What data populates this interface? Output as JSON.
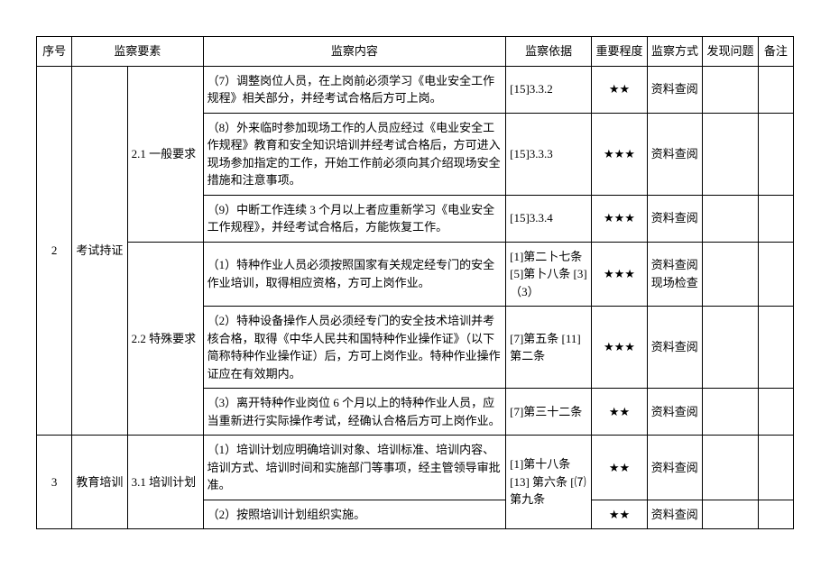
{
  "headers": {
    "seq": "序号",
    "element": "监察要素",
    "content": "监察内容",
    "basis": "监察依据",
    "importance": "重要程度",
    "method": "监察方式",
    "found": "发现问题",
    "remark": "备注"
  },
  "rows": [
    {
      "seq": "2",
      "elem1": "考试持证",
      "elem2": "2.1 一般要求",
      "content": "（7）调整岗位人员，在上岗前必须学习《电业安全工作规程》相关部分，并经考试合格后方可上岗。",
      "basis": "[15]3.3.2",
      "importance": "★★",
      "method": "资料查阅"
    },
    {
      "content": "（8）外来临时参加现场工作的人员应经过《电业安全工作规程》教育和安全知识培训并经考试合格后，方可进入现场参加指定的工作，开始工作前必须向其介绍现场安全措施和注意事项。",
      "basis": "[15]3.3.3",
      "importance": "★★★",
      "method": "资料查阅"
    },
    {
      "content": "（9）中断工作连续 3 个月以上者应重新学习《电业安全工作规程》，并经考试合格后，方能恢复工作。",
      "basis": "[15]3.3.4",
      "importance": "★★★",
      "method": "资料查阅"
    },
    {
      "elem2": "2.2 特殊要求",
      "content": "（1）特种作业人员必须按照国家有关规定经专门的安全作业培训，取得相应资格，方可上岗作业。",
      "basis": "[1]第二卜七条\n[5]第卜八条\n[3]（3）",
      "importance": "★★★",
      "method": "资料查阅\n现场检查"
    },
    {
      "content": "（2）特种设备操作人员必须经专门的安全技术培训并考核合格，取得《中华人民共和国特种作业操作证》（以下简称特种作业操作证）后，方可上岗作业。特种作业操作证应在有效期内。",
      "basis": "[7]第五条\n[11]第二条",
      "importance": "★★★",
      "method": "资料查阅"
    },
    {
      "content": "（3）离开特种作业岗位 6 个月以上的特种作业人员，应当重新进行实际操作考试，经确认合格后方可上岗作业。",
      "basis": "[7]第三十二条",
      "importance": "★★",
      "method": "资料查阅"
    },
    {
      "seq": "3",
      "elem1": "教育培训",
      "elem2": "3.1 培训计划",
      "content": "（1）培训计划应明确培训对象、培训标准、培训内容、培训方式、培训时间和实施部门等事项，经主管领导审批准。",
      "basis": "[1]第十八条[13]\n第六条\n[⑺第九条",
      "importance": "★★",
      "method": "资料查阅"
    },
    {
      "content": "（2）按照培训计划组织实施。",
      "importance": "★★",
      "method": "资料查阅"
    }
  ]
}
